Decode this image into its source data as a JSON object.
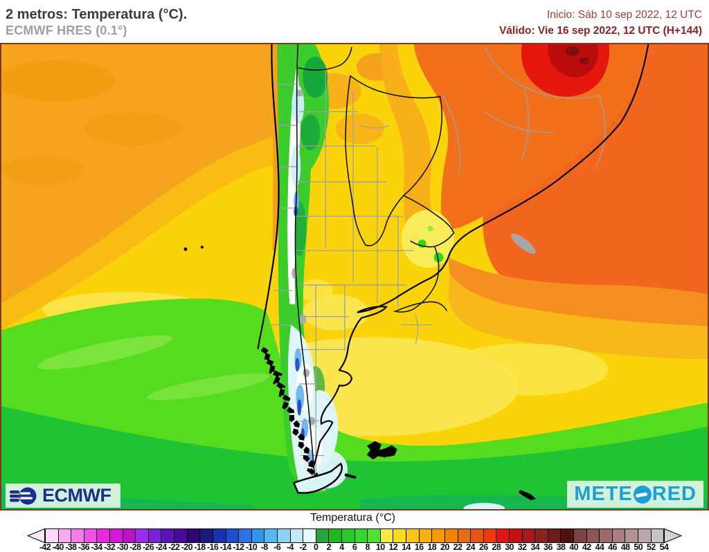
{
  "header": {
    "title": "2 metros: Temperatura (°C).",
    "model_line": "ECMWF HRES (0.1°)",
    "init_line": "Inicio: Sáb 10 sep 2022, 12 UTC",
    "valid_line": "Válido: Vie 16 sep 2022, 12 UTC (H+144)"
  },
  "branding": {
    "ecmwf_label": "ECMWF",
    "meteored_prefix": "METE",
    "meteored_suffix": "RED"
  },
  "colorbar": {
    "title": "Temperatura (°C)",
    "unit": "°C",
    "scale_min": -42,
    "scale_max": 54,
    "scale_step": 2,
    "tick_labels": [
      -42,
      -40,
      -38,
      -36,
      -34,
      -32,
      -30,
      -28,
      -26,
      -24,
      -22,
      -20,
      -18,
      -16,
      -14,
      -12,
      -10,
      -8,
      -6,
      -4,
      -2,
      0,
      2,
      4,
      6,
      8,
      10,
      12,
      14,
      16,
      18,
      20,
      22,
      24,
      26,
      28,
      30,
      32,
      34,
      36,
      38,
      40,
      42,
      44,
      46,
      48,
      50,
      52,
      54
    ],
    "cell_colors": [
      "#FBD9FB",
      "#F9A9F1",
      "#F67BEE",
      "#F24FE9",
      "#EA28DF",
      "#D715D7",
      "#BB12C9",
      "#9C2BEB",
      "#7B1FD9",
      "#5D13B8",
      "#470C99",
      "#2F0672",
      "#1B1B82",
      "#1634AE",
      "#1D4FD2",
      "#2B72E8",
      "#2E96EE",
      "#55B8F1",
      "#88D3F3",
      "#BEEBF7",
      "#E3F9FB",
      "#23A53F",
      "#1DB81D",
      "#28C828",
      "#33D833",
      "#4FE030",
      "#F6EC3E",
      "#F8DC20",
      "#FAC614",
      "#F9B00C",
      "#F89A04",
      "#F28202",
      "#EC6A10",
      "#E85418",
      "#EF3B0C",
      "#E51313",
      "#C51111",
      "#A71A1A",
      "#8F1E1E",
      "#6F1A1A",
      "#4F1212",
      "#7A4242",
      "#8C5656",
      "#9C6A6A",
      "#AA7E7E",
      "#B69292",
      "#BAA8A8",
      "#C9C2C2"
    ],
    "left_arrow_color": "#FBE9FB",
    "right_arrow_color": "#D2D2D2"
  },
  "colors": {
    "title_text": "#3C3C3C",
    "model_text": "#9AA0A6",
    "init_text": "#A23B32",
    "valid_text": "#8E1F24",
    "ecmwf_blue": "#1B2E8C",
    "meteored_blue": "#1C9FD8",
    "map_border": "#7A3A22"
  }
}
